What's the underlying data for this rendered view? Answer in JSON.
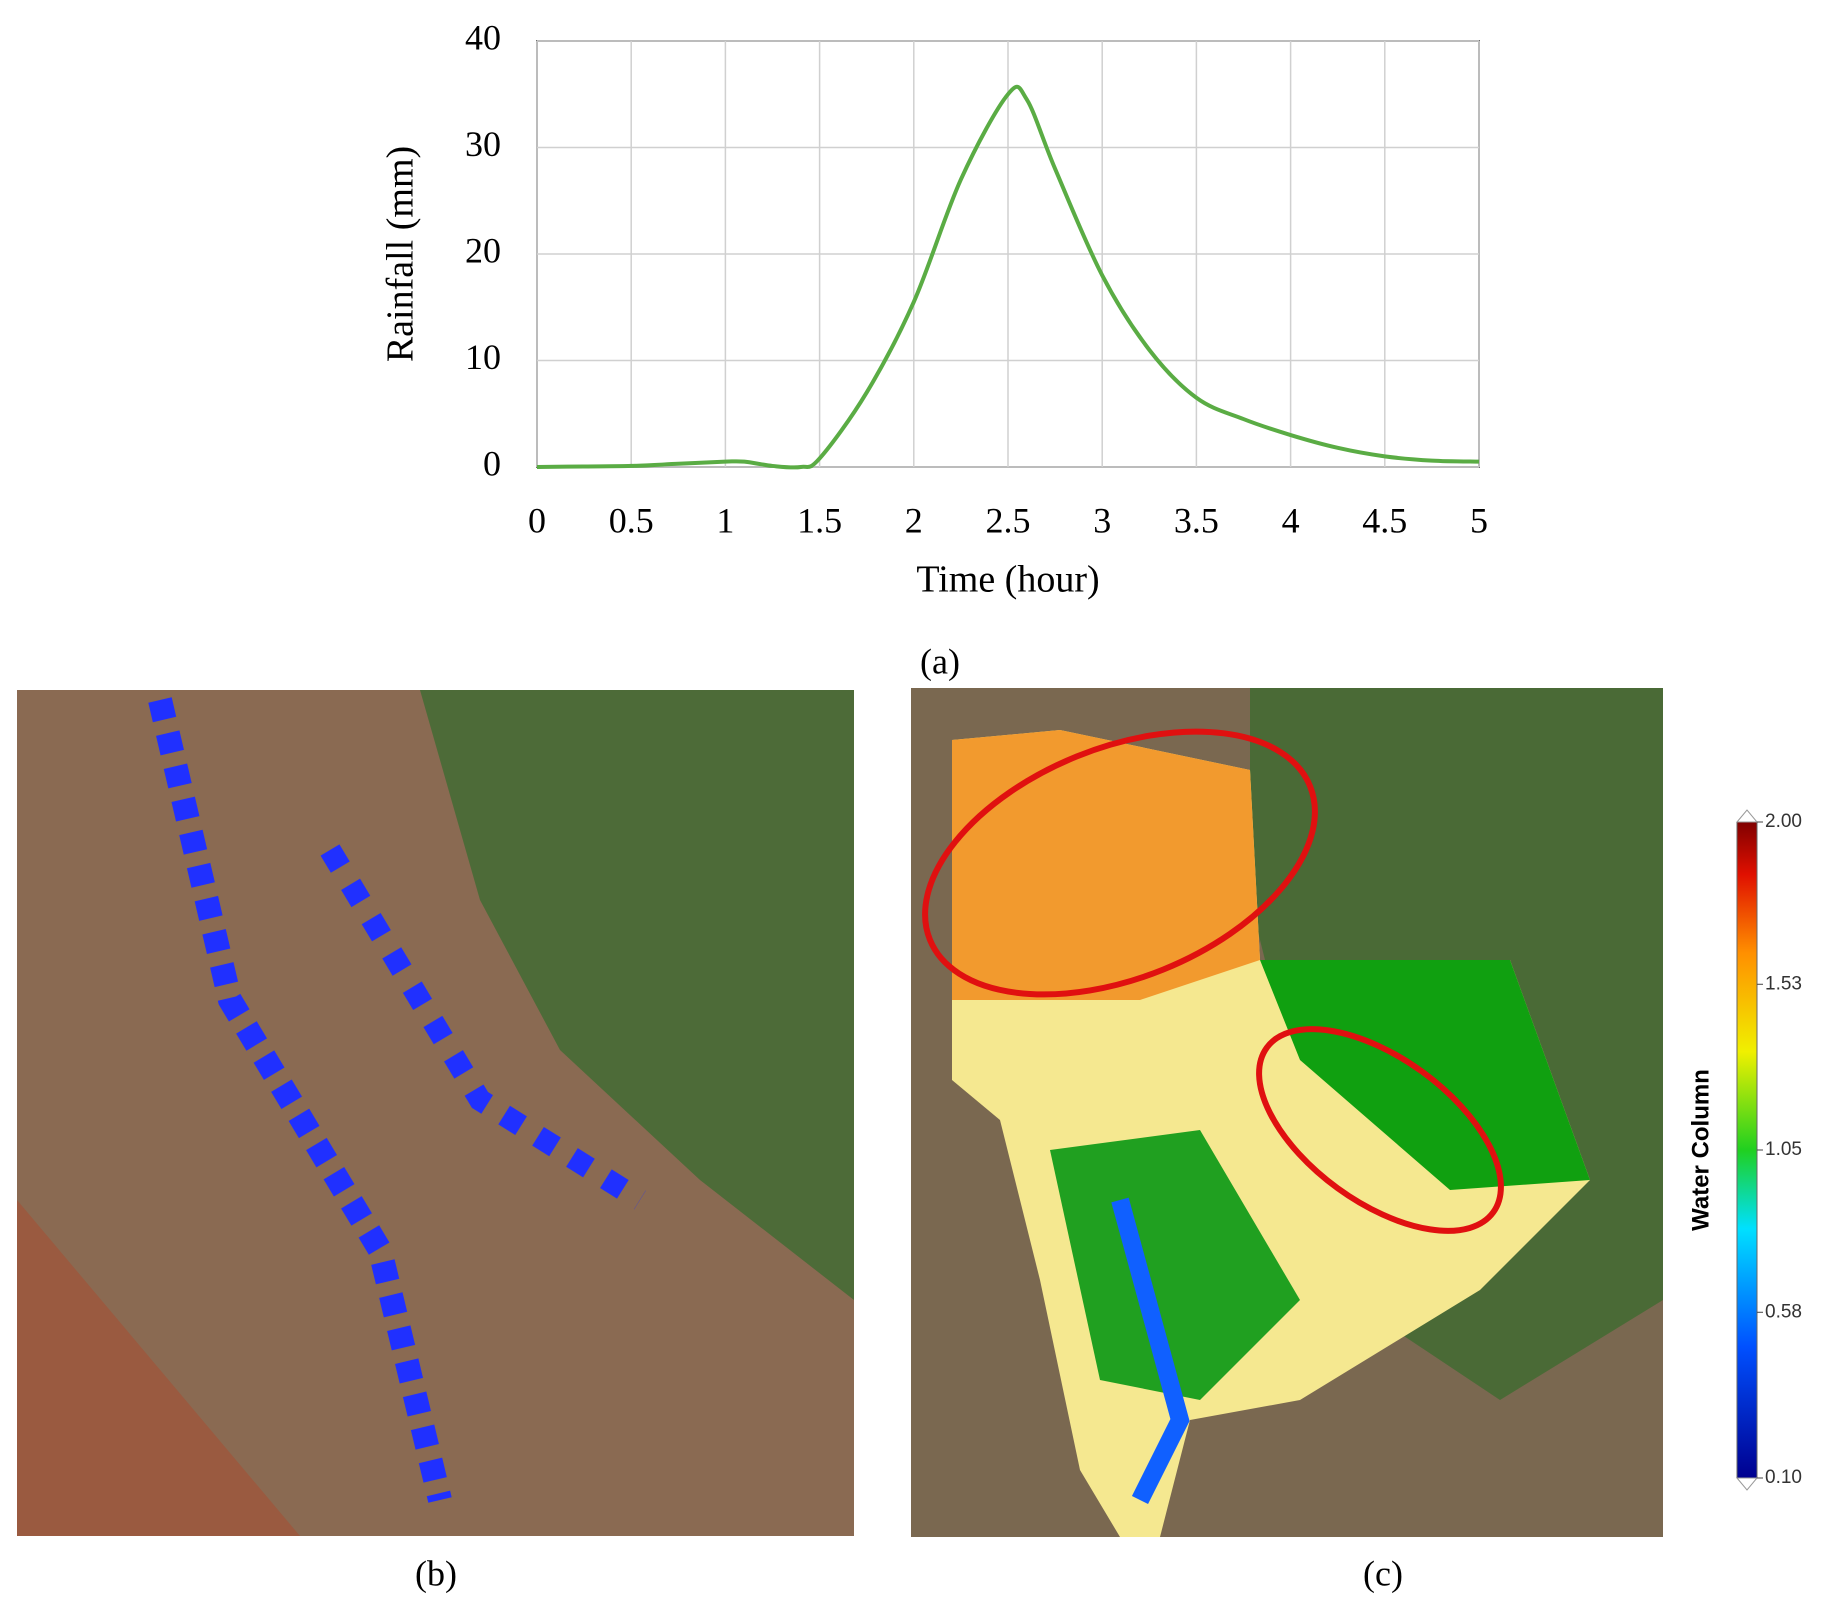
{
  "chart_data": {
    "type": "line",
    "x_label": "Time (hour)",
    "y_label": "Rainfall (mm)",
    "x": [
      0,
      0.25,
      0.5,
      0.75,
      1,
      1.1,
      1.25,
      1.4,
      1.5,
      1.75,
      2,
      2.25,
      2.5,
      2.6,
      2.75,
      3,
      3.25,
      3.5,
      3.75,
      4,
      4.25,
      4.5,
      4.75,
      5
    ],
    "series": [
      {
        "name": "Rainfall",
        "color": "#5aac44",
        "values": [
          0,
          0.05,
          0.1,
          0.3,
          0.5,
          0.5,
          0.1,
          0,
          0.8,
          7,
          15.5,
          27,
          35,
          34.5,
          28,
          18,
          11,
          6.5,
          4.5,
          3,
          1.8,
          1,
          0.6,
          0.5
        ]
      }
    ],
    "xlim": [
      0,
      5
    ],
    "xticks": [
      0,
      0.5,
      1,
      1.5,
      2,
      2.5,
      3,
      3.5,
      4,
      4.5,
      5
    ],
    "ylim": [
      0,
      40
    ],
    "yticks": [
      0,
      10,
      20,
      30,
      40
    ],
    "grid": true
  },
  "panels": {
    "a": "(a)",
    "b": "(b)",
    "c": "(c)"
  },
  "colorbar": {
    "label": "Water Column",
    "lim": [
      0.1,
      2
    ],
    "ticks": [
      {
        "value": 2,
        "label": "2.00"
      },
      {
        "value": 1.53,
        "label": "1.53"
      },
      {
        "value": 1.05,
        "label": "1.05"
      },
      {
        "value": 0.58,
        "label": "0.58"
      },
      {
        "value": 0.1,
        "label": "0.10"
      }
    ]
  }
}
